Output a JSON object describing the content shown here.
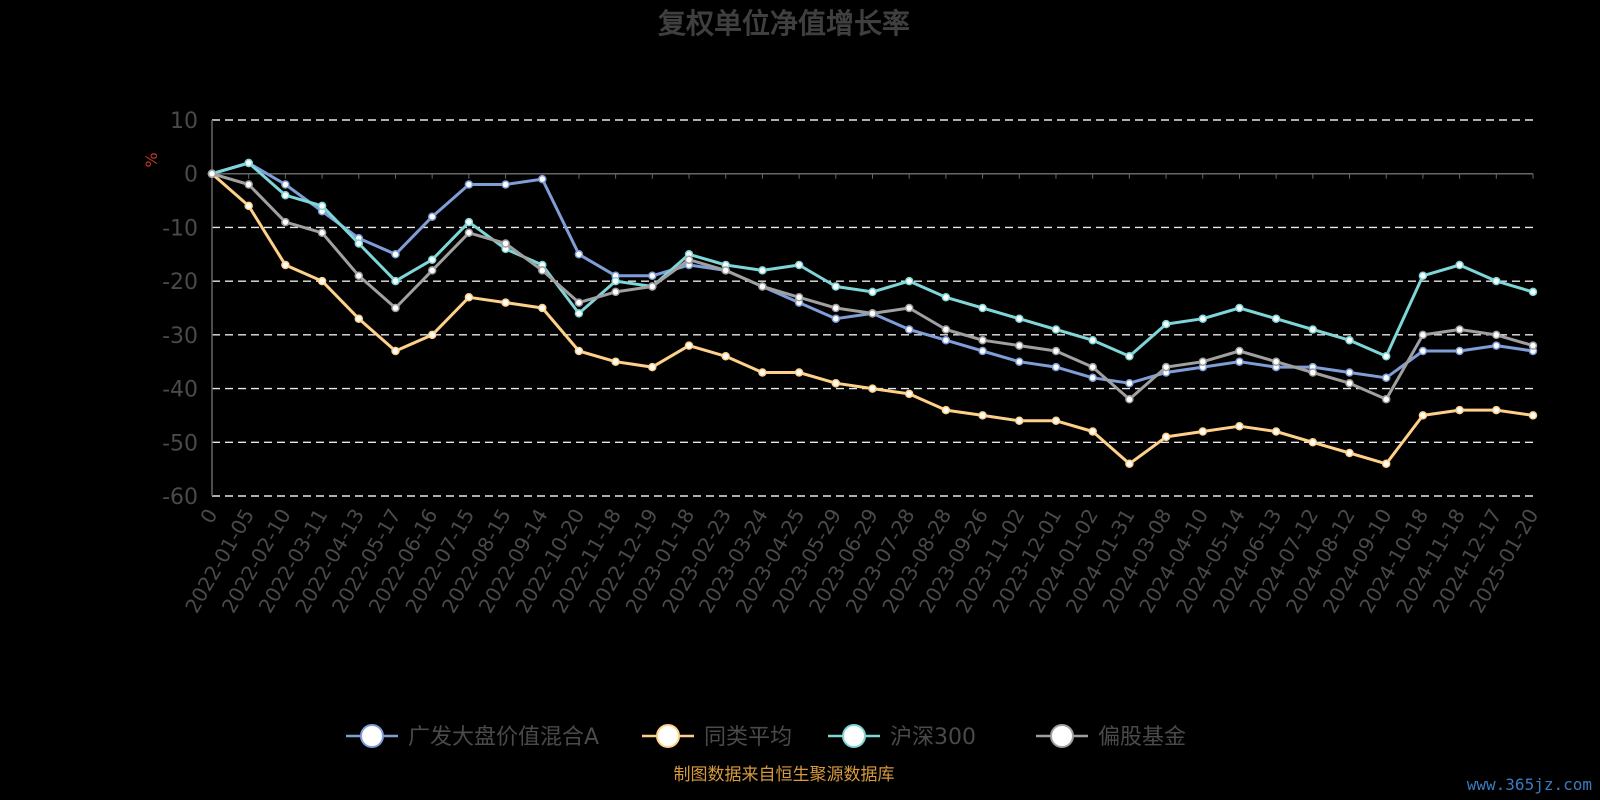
{
  "chart_data": {
    "type": "line",
    "title": "复权单位净值增长率",
    "ylabel": "%",
    "ylim": [
      -60,
      10
    ],
    "yticks": [
      10,
      0,
      -10,
      -20,
      -30,
      -40,
      -50,
      -60
    ],
    "grid": true,
    "legend_position": "bottom",
    "x": [
      "0",
      "2022-01-05",
      "2022-02-10",
      "2022-03-11",
      "2022-04-13",
      "2022-05-17",
      "2022-06-16",
      "2022-07-15",
      "2022-08-15",
      "2022-09-14",
      "2022-10-20",
      "2022-11-18",
      "2022-12-19",
      "2023-01-18",
      "2023-02-23",
      "2023-03-24",
      "2023-04-25",
      "2023-05-29",
      "2023-06-29",
      "2023-07-28",
      "2023-08-28",
      "2023-09-26",
      "2023-11-02",
      "2023-12-01",
      "2024-01-02",
      "2024-01-31",
      "2024-03-08",
      "2024-04-10",
      "2024-05-14",
      "2024-06-13",
      "2024-07-12",
      "2024-08-12",
      "2024-09-10",
      "2024-10-18",
      "2024-11-18",
      "2024-12-17",
      "2025-01-20"
    ],
    "series": [
      {
        "name": "广发大盘价值混合A",
        "color": "#7f9ed8",
        "values": [
          0,
          2,
          -2,
          -7,
          -12,
          -15,
          -8,
          -2,
          -2,
          -1,
          -15,
          -19,
          -19,
          -17,
          -18,
          -21,
          -24,
          -27,
          -26,
          -29,
          -31,
          -33,
          -35,
          -36,
          -38,
          -39,
          -37,
          -36,
          -35,
          -36,
          -36,
          -37,
          -38,
          -33,
          -33,
          -32,
          -33
        ]
      },
      {
        "name": "同类平均",
        "color": "#ffd08a",
        "values": [
          0,
          -6,
          -17,
          -20,
          -27,
          -33,
          -30,
          -23,
          -24,
          -25,
          -33,
          -35,
          -36,
          -32,
          -34,
          -37,
          -37,
          -39,
          -40,
          -41,
          -44,
          -45,
          -46,
          -46,
          -48,
          -54,
          -49,
          -48,
          -47,
          -48,
          -50,
          -52,
          -54,
          -45,
          -44,
          -44,
          -45
        ]
      },
      {
        "name": "沪深300",
        "color": "#7ed6d8",
        "values": [
          0,
          2,
          -4,
          -6,
          -13,
          -20,
          -16,
          -9,
          -14,
          -17,
          -26,
          -20,
          -21,
          -15,
          -17,
          -18,
          -17,
          -21,
          -22,
          -20,
          -23,
          -25,
          -27,
          -29,
          -31,
          -34,
          -28,
          -27,
          -25,
          -27,
          -29,
          -31,
          -34,
          -19,
          -17,
          -20,
          -22
        ]
      },
      {
        "name": "偏股基金",
        "color": "#a0a0a0",
        "values": [
          0,
          -2,
          -9,
          -11,
          -19,
          -25,
          -18,
          -11,
          -13,
          -18,
          -24,
          -22,
          -21,
          -16,
          -18,
          -21,
          -23,
          -25,
          -26,
          -25,
          -29,
          -31,
          -32,
          -33,
          -36,
          -42,
          -36,
          -35,
          -33,
          -35,
          -37,
          -39,
          -42,
          -30,
          -29,
          -30,
          -32
        ]
      }
    ]
  },
  "footer": {
    "source": "制图数据来自恒生聚源数据库",
    "watermark": "www.365jz.com"
  }
}
